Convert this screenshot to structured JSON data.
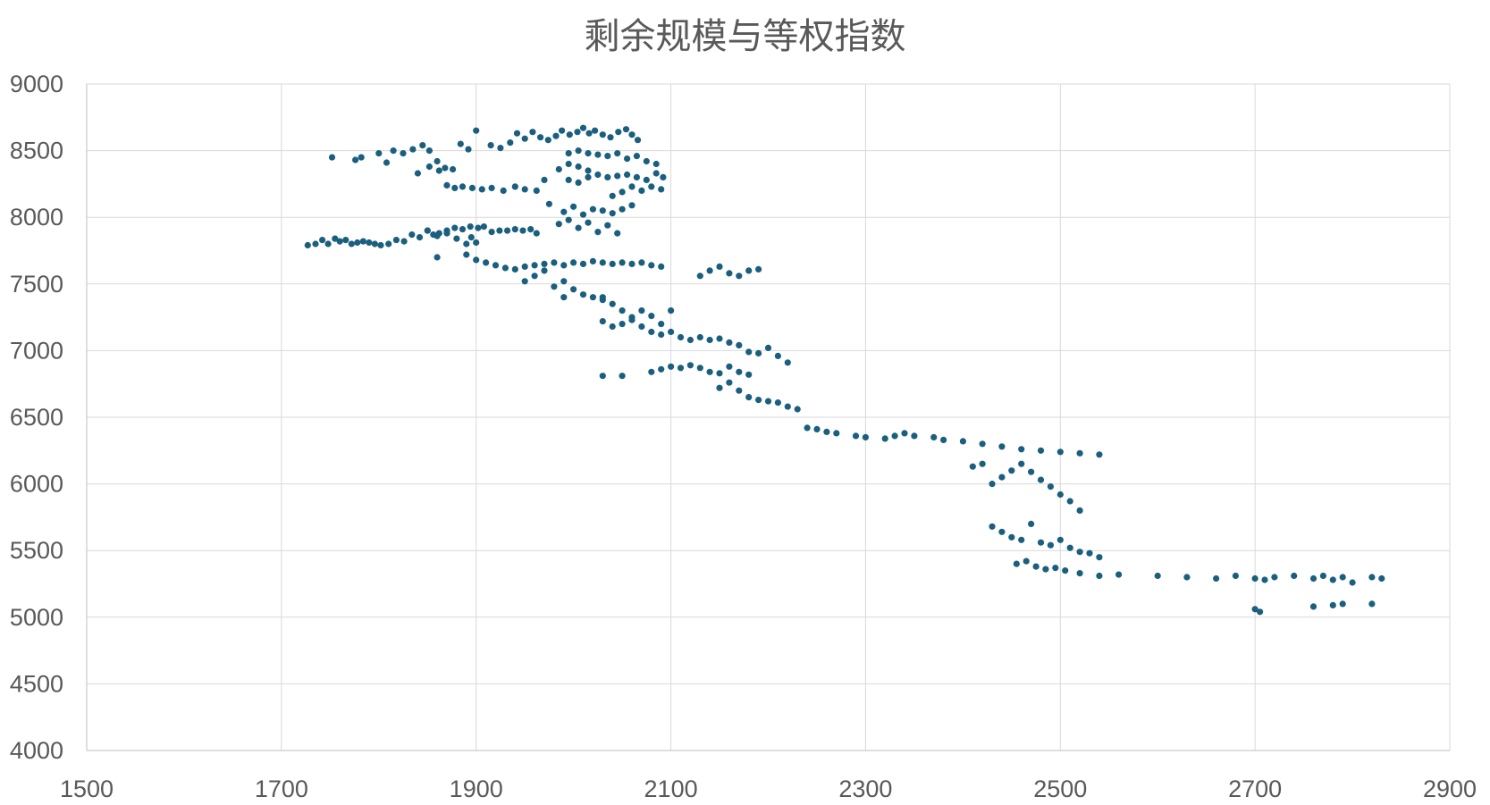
{
  "chart_data": {
    "type": "scatter",
    "title": "剩余规模与等权指数",
    "xlabel": "",
    "ylabel": "",
    "xlim": [
      1500,
      2900
    ],
    "ylim": [
      4000,
      9000
    ],
    "xticks": [
      1500,
      1700,
      1900,
      2100,
      2300,
      2500,
      2700,
      2900
    ],
    "yticks": [
      4000,
      4500,
      5000,
      5500,
      6000,
      6500,
      7000,
      7500,
      8000,
      8500,
      9000
    ],
    "grid": true,
    "legend": "none",
    "marker_color": "#1b5f7f",
    "series": [
      {
        "points": [
          [
            1727,
            7790
          ],
          [
            1735,
            7800
          ],
          [
            1742,
            7830
          ],
          [
            1748,
            7800
          ],
          [
            1755,
            7840
          ],
          [
            1760,
            7820
          ],
          [
            1766,
            7830
          ],
          [
            1772,
            7800
          ],
          [
            1778,
            7810
          ],
          [
            1784,
            7820
          ],
          [
            1790,
            7810
          ],
          [
            1796,
            7800
          ],
          [
            1802,
            7790
          ],
          [
            1810,
            7800
          ],
          [
            1818,
            7830
          ],
          [
            1826,
            7820
          ],
          [
            1834,
            7870
          ],
          [
            1842,
            7850
          ],
          [
            1850,
            7900
          ],
          [
            1856,
            7870
          ],
          [
            1862,
            7880
          ],
          [
            1870,
            7900
          ],
          [
            1878,
            7920
          ],
          [
            1886,
            7910
          ],
          [
            1894,
            7930
          ],
          [
            1902,
            7920
          ],
          [
            1908,
            7930
          ],
          [
            1916,
            7890
          ],
          [
            1924,
            7900
          ],
          [
            1932,
            7900
          ],
          [
            1940,
            7910
          ],
          [
            1948,
            7900
          ],
          [
            1956,
            7910
          ],
          [
            1962,
            7880
          ],
          [
            1752,
            8450
          ],
          [
            1776,
            8430
          ],
          [
            1782,
            8450
          ],
          [
            1800,
            8480
          ],
          [
            1808,
            8410
          ],
          [
            1815,
            8500
          ],
          [
            1825,
            8480
          ],
          [
            1835,
            8510
          ],
          [
            1845,
            8540
          ],
          [
            1852,
            8500
          ],
          [
            1860,
            8420
          ],
          [
            1868,
            8370
          ],
          [
            1876,
            8360
          ],
          [
            1884,
            8550
          ],
          [
            1892,
            8510
          ],
          [
            1840,
            8330
          ],
          [
            1852,
            8380
          ],
          [
            1862,
            8350
          ],
          [
            1870,
            8240
          ],
          [
            1878,
            8220
          ],
          [
            1886,
            8230
          ],
          [
            1896,
            8220
          ],
          [
            1906,
            8210
          ],
          [
            1916,
            8220
          ],
          [
            1928,
            8200
          ],
          [
            1940,
            8230
          ],
          [
            1950,
            8210
          ],
          [
            1962,
            8200
          ],
          [
            1970,
            8280
          ],
          [
            1900,
            8650
          ],
          [
            1915,
            8540
          ],
          [
            1925,
            8520
          ],
          [
            1935,
            8560
          ],
          [
            1942,
            8630
          ],
          [
            1950,
            8590
          ],
          [
            1958,
            8640
          ],
          [
            1966,
            8600
          ],
          [
            1974,
            8580
          ],
          [
            1982,
            8610
          ],
          [
            1988,
            8650
          ],
          [
            1996,
            8620
          ],
          [
            2004,
            8640
          ],
          [
            2010,
            8670
          ],
          [
            2016,
            8630
          ],
          [
            2022,
            8650
          ],
          [
            2030,
            8620
          ],
          [
            2038,
            8600
          ],
          [
            2046,
            8640
          ],
          [
            2054,
            8660
          ],
          [
            2060,
            8620
          ],
          [
            2066,
            8580
          ],
          [
            1995,
            8480
          ],
          [
            2005,
            8500
          ],
          [
            2015,
            8480
          ],
          [
            2025,
            8470
          ],
          [
            2035,
            8460
          ],
          [
            2045,
            8480
          ],
          [
            2055,
            8440
          ],
          [
            2065,
            8460
          ],
          [
            2075,
            8420
          ],
          [
            2085,
            8400
          ],
          [
            1985,
            8360
          ],
          [
            1995,
            8400
          ],
          [
            2005,
            8380
          ],
          [
            2015,
            8350
          ],
          [
            2025,
            8320
          ],
          [
            2035,
            8300
          ],
          [
            2045,
            8310
          ],
          [
            2055,
            8320
          ],
          [
            2065,
            8300
          ],
          [
            2075,
            8280
          ],
          [
            2085,
            8330
          ],
          [
            2092,
            8300
          ],
          [
            1995,
            8280
          ],
          [
            2005,
            8260
          ],
          [
            2015,
            8300
          ],
          [
            2040,
            8160
          ],
          [
            2050,
            8190
          ],
          [
            2060,
            8230
          ],
          [
            2070,
            8200
          ],
          [
            2080,
            8230
          ],
          [
            2090,
            8210
          ],
          [
            1975,
            8100
          ],
          [
            1990,
            8040
          ],
          [
            2000,
            8080
          ],
          [
            2010,
            8020
          ],
          [
            2020,
            8060
          ],
          [
            2030,
            8050
          ],
          [
            2040,
            8030
          ],
          [
            2050,
            8060
          ],
          [
            2060,
            8090
          ],
          [
            1850,
            7900
          ],
          [
            1860,
            7860
          ],
          [
            1870,
            7880
          ],
          [
            1880,
            7840
          ],
          [
            1890,
            7800
          ],
          [
            1895,
            7850
          ],
          [
            1900,
            7810
          ],
          [
            1985,
            7950
          ],
          [
            1995,
            7980
          ],
          [
            2005,
            7920
          ],
          [
            2015,
            7960
          ],
          [
            2025,
            7890
          ],
          [
            2035,
            7940
          ],
          [
            2045,
            7880
          ],
          [
            1860,
            7700
          ],
          [
            1890,
            7720
          ],
          [
            1900,
            7680
          ],
          [
            1910,
            7660
          ],
          [
            1920,
            7640
          ],
          [
            1930,
            7620
          ],
          [
            1940,
            7610
          ],
          [
            1950,
            7630
          ],
          [
            1960,
            7640
          ],
          [
            1970,
            7650
          ],
          [
            1980,
            7660
          ],
          [
            1990,
            7640
          ],
          [
            2000,
            7660
          ],
          [
            2010,
            7650
          ],
          [
            2020,
            7670
          ],
          [
            2030,
            7660
          ],
          [
            2040,
            7650
          ],
          [
            2050,
            7660
          ],
          [
            2060,
            7650
          ],
          [
            2070,
            7660
          ],
          [
            2080,
            7640
          ],
          [
            2090,
            7630
          ],
          [
            1950,
            7520
          ],
          [
            1960,
            7560
          ],
          [
            1970,
            7600
          ],
          [
            1980,
            7480
          ],
          [
            1990,
            7520
          ],
          [
            2000,
            7460
          ],
          [
            2010,
            7420
          ],
          [
            2020,
            7400
          ],
          [
            1990,
            7400
          ],
          [
            2030,
            7380
          ],
          [
            2130,
            7560
          ],
          [
            2140,
            7600
          ],
          [
            2150,
            7630
          ],
          [
            2160,
            7580
          ],
          [
            2170,
            7560
          ],
          [
            2180,
            7600
          ],
          [
            2190,
            7610
          ],
          [
            2030,
            7400
          ],
          [
            2040,
            7350
          ],
          [
            2050,
            7300
          ],
          [
            2060,
            7250
          ],
          [
            2070,
            7300
          ],
          [
            2080,
            7260
          ],
          [
            2090,
            7200
          ],
          [
            2100,
            7140
          ],
          [
            2110,
            7100
          ],
          [
            2030,
            7220
          ],
          [
            2040,
            7180
          ],
          [
            2050,
            7200
          ],
          [
            2060,
            7230
          ],
          [
            2070,
            7180
          ],
          [
            2080,
            7140
          ],
          [
            2090,
            7120
          ],
          [
            2100,
            7300
          ],
          [
            2120,
            7080
          ],
          [
            2130,
            7100
          ],
          [
            2140,
            7080
          ],
          [
            2150,
            7090
          ],
          [
            2160,
            7060
          ],
          [
            2170,
            7040
          ],
          [
            2180,
            6990
          ],
          [
            2190,
            6980
          ],
          [
            2200,
            7020
          ],
          [
            2210,
            6960
          ],
          [
            2220,
            6910
          ],
          [
            2030,
            6810
          ],
          [
            2050,
            6810
          ],
          [
            2080,
            6840
          ],
          [
            2090,
            6860
          ],
          [
            2100,
            6880
          ],
          [
            2110,
            6870
          ],
          [
            2120,
            6890
          ],
          [
            2130,
            6870
          ],
          [
            2140,
            6840
          ],
          [
            2150,
            6830
          ],
          [
            2160,
            6880
          ],
          [
            2170,
            6840
          ],
          [
            2180,
            6820
          ],
          [
            2150,
            6720
          ],
          [
            2160,
            6760
          ],
          [
            2170,
            6700
          ],
          [
            2180,
            6650
          ],
          [
            2190,
            6630
          ],
          [
            2200,
            6620
          ],
          [
            2210,
            6610
          ],
          [
            2220,
            6580
          ],
          [
            2230,
            6560
          ],
          [
            2240,
            6420
          ],
          [
            2250,
            6410
          ],
          [
            2260,
            6390
          ],
          [
            2270,
            6380
          ],
          [
            2290,
            6360
          ],
          [
            2300,
            6350
          ],
          [
            2320,
            6340
          ],
          [
            2330,
            6360
          ],
          [
            2340,
            6380
          ],
          [
            2350,
            6360
          ],
          [
            2370,
            6350
          ],
          [
            2380,
            6330
          ],
          [
            2400,
            6320
          ],
          [
            2420,
            6300
          ],
          [
            2440,
            6280
          ],
          [
            2460,
            6260
          ],
          [
            2480,
            6250
          ],
          [
            2500,
            6240
          ],
          [
            2520,
            6230
          ],
          [
            2540,
            6220
          ],
          [
            2410,
            6130
          ],
          [
            2420,
            6150
          ],
          [
            2430,
            6000
          ],
          [
            2440,
            6050
          ],
          [
            2450,
            6100
          ],
          [
            2460,
            6150
          ],
          [
            2470,
            6090
          ],
          [
            2480,
            6030
          ],
          [
            2490,
            5980
          ],
          [
            2500,
            5920
          ],
          [
            2510,
            5870
          ],
          [
            2520,
            5800
          ],
          [
            2430,
            5680
          ],
          [
            2440,
            5640
          ],
          [
            2450,
            5600
          ],
          [
            2460,
            5580
          ],
          [
            2470,
            5700
          ],
          [
            2480,
            5560
          ],
          [
            2490,
            5540
          ],
          [
            2500,
            5580
          ],
          [
            2510,
            5520
          ],
          [
            2520,
            5490
          ],
          [
            2530,
            5480
          ],
          [
            2540,
            5450
          ],
          [
            2455,
            5400
          ],
          [
            2465,
            5420
          ],
          [
            2475,
            5380
          ],
          [
            2485,
            5360
          ],
          [
            2495,
            5370
          ],
          [
            2505,
            5350
          ],
          [
            2520,
            5330
          ],
          [
            2540,
            5310
          ],
          [
            2560,
            5320
          ],
          [
            2600,
            5310
          ],
          [
            2630,
            5300
          ],
          [
            2660,
            5290
          ],
          [
            2680,
            5310
          ],
          [
            2700,
            5290
          ],
          [
            2710,
            5280
          ],
          [
            2720,
            5300
          ],
          [
            2740,
            5310
          ],
          [
            2760,
            5290
          ],
          [
            2770,
            5310
          ],
          [
            2780,
            5280
          ],
          [
            2790,
            5300
          ],
          [
            2800,
            5260
          ],
          [
            2820,
            5300
          ],
          [
            2830,
            5290
          ],
          [
            2700,
            5060
          ],
          [
            2705,
            5040
          ],
          [
            2760,
            5080
          ],
          [
            2780,
            5090
          ],
          [
            2790,
            5100
          ],
          [
            2820,
            5100
          ]
        ]
      }
    ]
  }
}
